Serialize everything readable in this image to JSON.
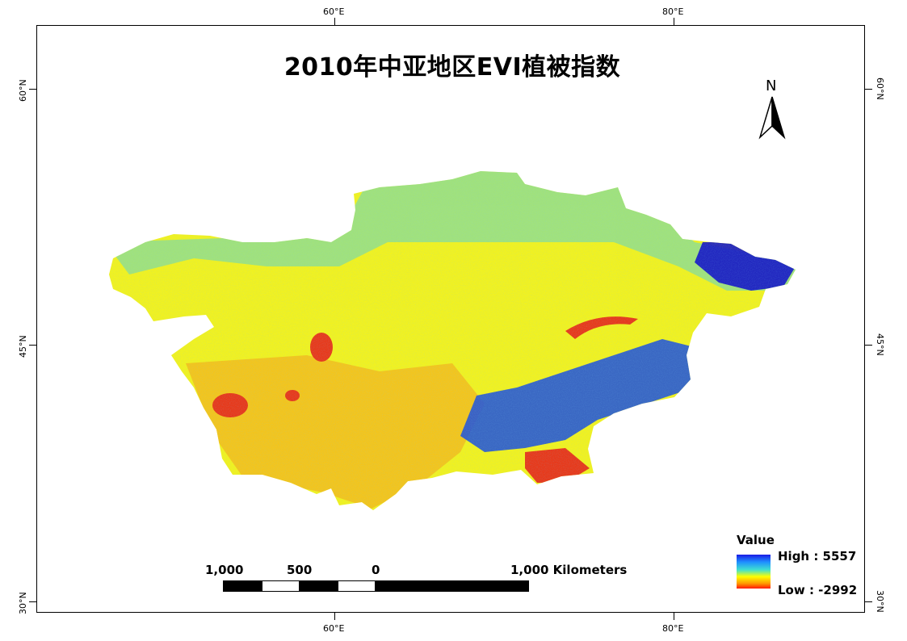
{
  "title": "2010年中亚地区EVI植被指数",
  "north_arrow": {
    "letter": "N"
  },
  "graticule": {
    "longitudes": [
      "60°E",
      "80°E"
    ],
    "latitudes": [
      "60°N",
      "45°N",
      "30°N"
    ]
  },
  "scale_bar": {
    "labels": [
      "1,000",
      "500",
      "0",
      "1,000 Kilometers"
    ]
  },
  "legend": {
    "title": "Value",
    "high": "High : 5557",
    "low": "Low : -2992",
    "colors": [
      "#1a1ae6",
      "#1e90ff",
      "#40e0d0",
      "#ffff00",
      "#ff9a00",
      "#ff1a00"
    ]
  },
  "map_colors": {
    "base": "#f2f21e",
    "cyan": "#5fd6c8",
    "blue": "#1a4fe0",
    "deep_blue": "#1414c8",
    "orange": "#f5b21a",
    "red": "#e8391a"
  }
}
